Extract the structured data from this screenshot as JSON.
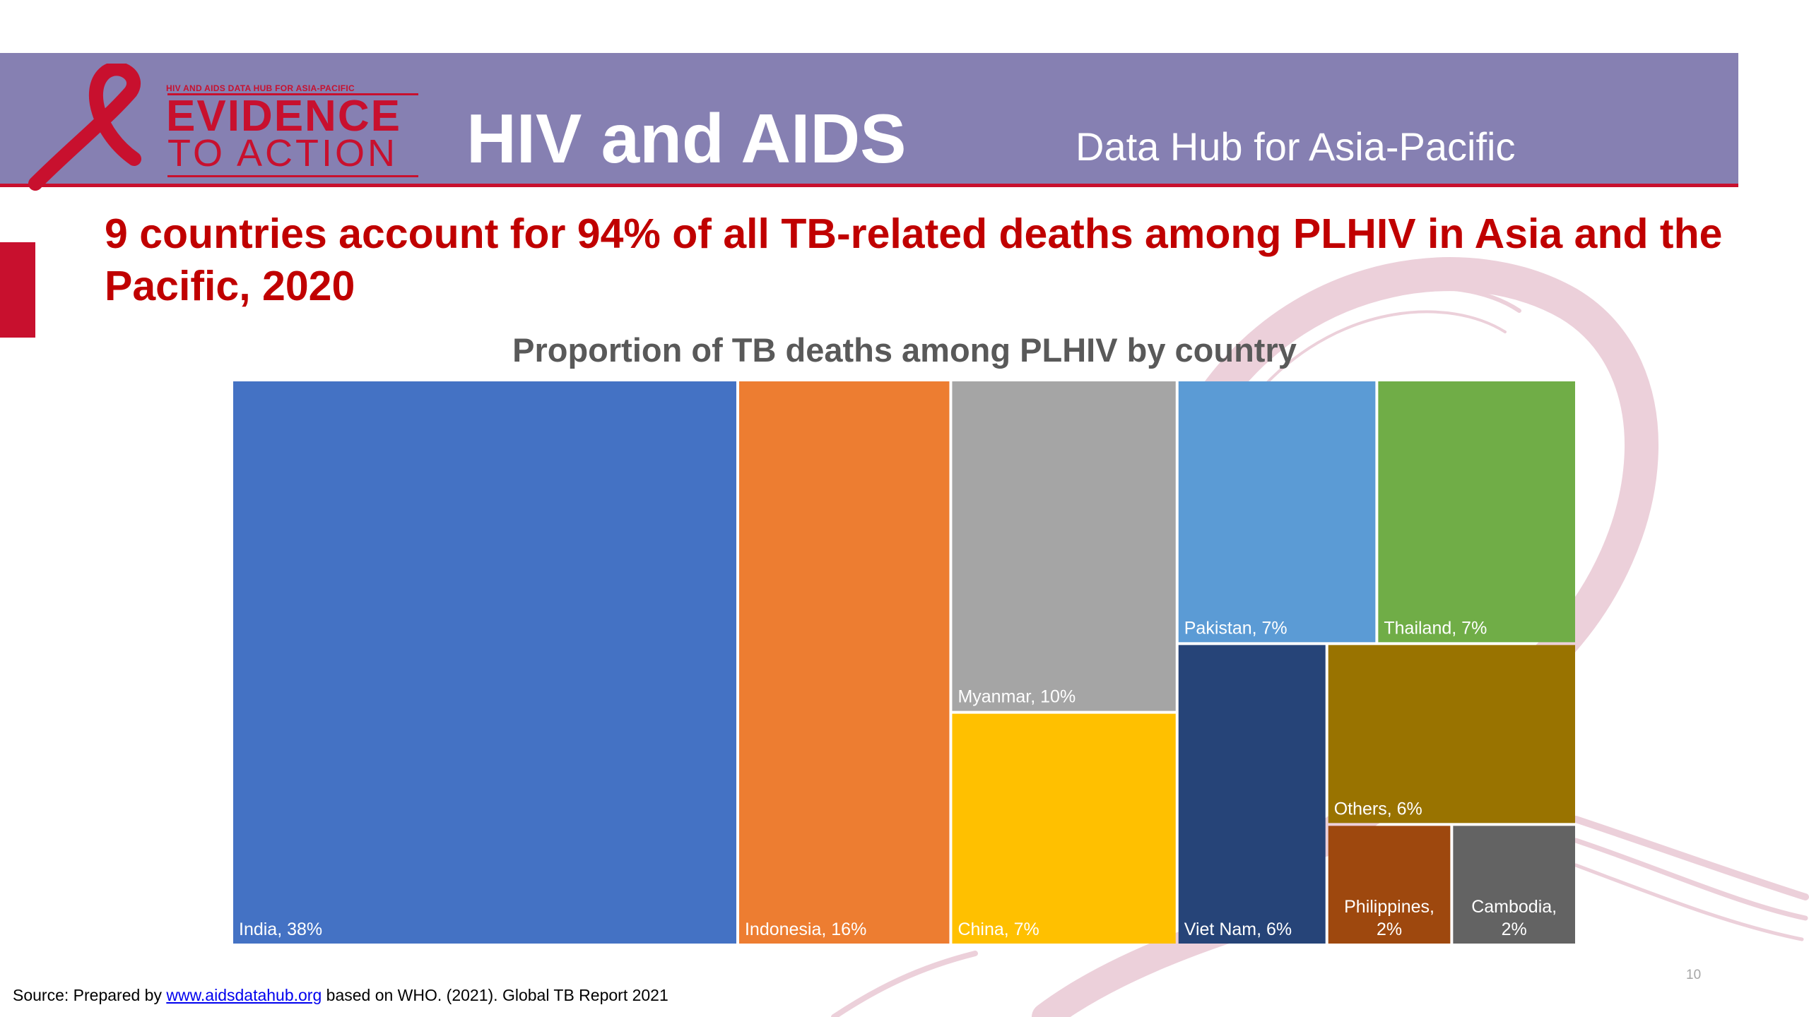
{
  "header": {
    "logo_small_text": "HIV AND AIDS DATA HUB FOR ASIA-PACIFIC",
    "logo_line1": "EVIDENCE",
    "logo_line2": "TO ACTION",
    "title": "HIV and AIDS",
    "subtitle": "Data Hub for Asia-Pacific"
  },
  "slide": {
    "headline": "9 countries account for 94% of all TB-related deaths among PLHIV in Asia and the Pacific, 2020",
    "page_number": "10"
  },
  "source": {
    "prefix": "Source: Prepared by ",
    "link_text": "www.aidsdatahub.org",
    "suffix": " based on WHO. (2021). Global TB Report 2021"
  },
  "colors": {
    "header_band": "#8680b2",
    "accent_red": "#c8102e",
    "headline_red": "#c00000"
  },
  "chart_data": {
    "type": "treemap",
    "title": "Proportion of TB deaths among PLHIV by country",
    "unit": "%",
    "items": [
      {
        "name": "India",
        "value": 38,
        "label": "India, 38%",
        "color": "#4472c4"
      },
      {
        "name": "Indonesia",
        "value": 16,
        "label": "Indonesia, 16%",
        "color": "#ed7d31"
      },
      {
        "name": "Myanmar",
        "value": 10,
        "label": "Myanmar, 10%",
        "color": "#a5a5a5"
      },
      {
        "name": "China",
        "value": 7,
        "label": "China, 7%",
        "color": "#ffc000"
      },
      {
        "name": "Pakistan",
        "value": 7,
        "label": "Pakistan, 7%",
        "color": "#5b9bd5"
      },
      {
        "name": "Thailand",
        "value": 7,
        "label": "Thailand, 7%",
        "color": "#70ad47"
      },
      {
        "name": "Viet Nam",
        "value": 6,
        "label": "Viet Nam, 6%",
        "color": "#264478"
      },
      {
        "name": "Others",
        "value": 6,
        "label": "Others, 6%",
        "color": "#997300"
      },
      {
        "name": "Philippines",
        "value": 2,
        "label": "Philippines, 2%",
        "color": "#9e480e"
      },
      {
        "name": "Cambodia",
        "value": 2,
        "label": "Cambodia, 2%",
        "color": "#636363"
      }
    ]
  }
}
